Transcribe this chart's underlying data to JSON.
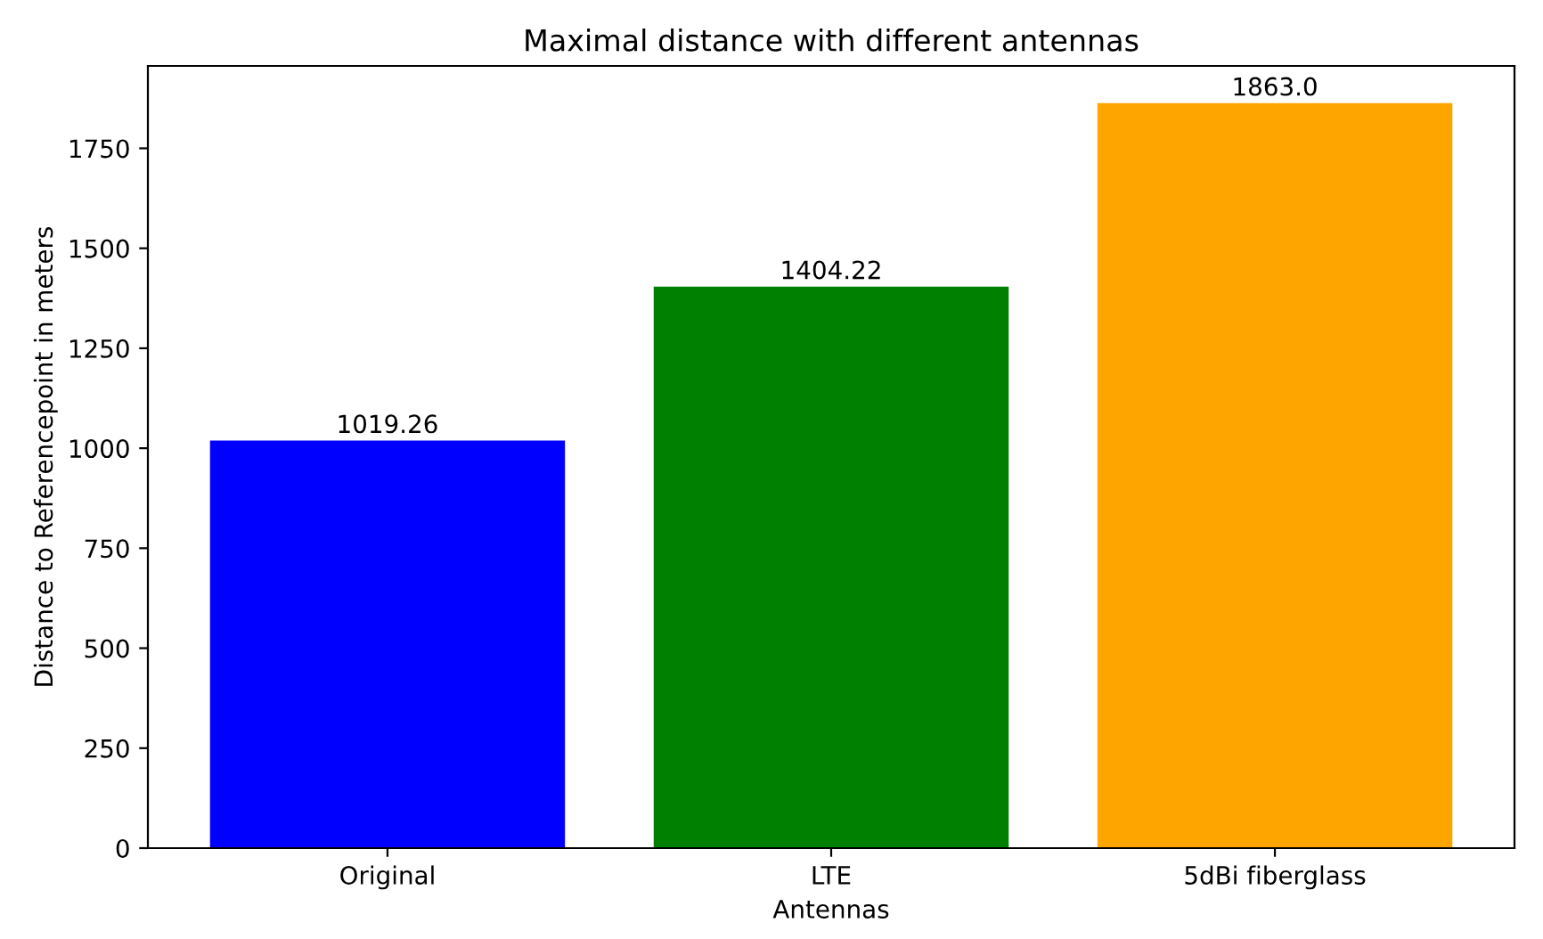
{
  "chart_data": {
    "type": "bar",
    "title": "Maximal distance with different antennas",
    "xlabel": "Antennas",
    "ylabel": "Distance to Referencepoint in meters",
    "categories": [
      "Original",
      "LTE",
      "5dBi fiberglass"
    ],
    "values": [
      1019.26,
      1404.22,
      1863.0
    ],
    "colors": [
      "#0000ff",
      "#008000",
      "#ffa500"
    ],
    "value_labels": [
      "1019.26",
      "1404.22",
      "1863.0"
    ],
    "ylim": [
      0,
      1956
    ],
    "yticks": [
      0,
      250,
      500,
      750,
      1000,
      1250,
      1500,
      1750
    ],
    "grid": false,
    "legend": false
  }
}
